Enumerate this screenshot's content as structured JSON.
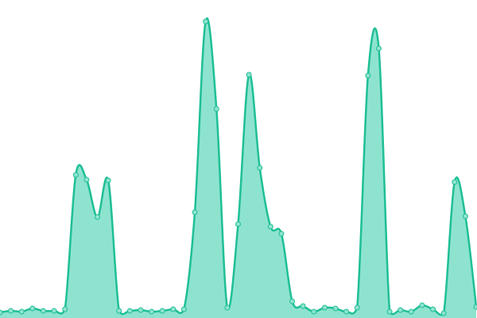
{
  "chart_data": {
    "type": "area",
    "values": [
      7,
      9,
      8,
      12,
      9,
      9,
      11,
      180,
      174,
      127,
      173,
      9,
      9,
      10,
      8,
      9,
      11,
      11,
      133,
      373,
      263,
      13,
      118,
      306,
      189,
      115,
      106,
      21,
      15,
      8,
      13,
      12,
      8,
      13,
      305,
      339,
      8,
      10,
      8,
      16,
      11,
      6,
      171,
      128,
      14
    ],
    "ylim": [
      0,
      400
    ],
    "color": "#1fbf95",
    "fill_color": "#8ee3cf"
  }
}
